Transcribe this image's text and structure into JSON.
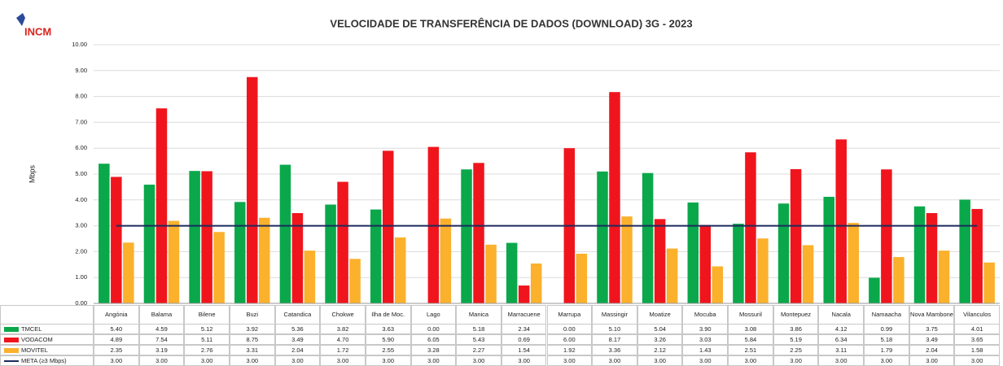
{
  "logo": "INCM",
  "chart_data": {
    "type": "bar",
    "title": "VELOCIDADE DE TRANSFERÊNCIA DE DADOS (DOWNLOAD) 3G - 2023",
    "y_label": "Mbps",
    "categories": [
      "Angónia",
      "Balama",
      "Bilene",
      "Buzi",
      "Catandica",
      "Chokwe",
      "Ilha de Moc.",
      "Lago",
      "Manica",
      "Marracuene",
      "Marrupa",
      "Massingir",
      "Moatize",
      "Mocuba",
      "Mossuril",
      "Montepuez",
      "Nacala",
      "Namaacha",
      "Nova Mambone",
      "Vilanculos"
    ],
    "series": [
      {
        "name": "TMCEL",
        "color": "#0aa84a",
        "type": "bar",
        "values": [
          5.4,
          4.59,
          5.12,
          3.92,
          5.36,
          3.82,
          3.63,
          0,
          5.18,
          2.34,
          0,
          5.1,
          5.04,
          3.9,
          3.08,
          3.86,
          4.12,
          0.99,
          3.75,
          4.01
        ],
        "value_labels": [
          "5.40",
          "4.59",
          "5.12",
          "3.92",
          "5.36",
          "3.82",
          "3.63",
          "0.00",
          "5.18",
          "2.34",
          "0.00",
          "5.10",
          "5.04",
          "3.90",
          "3.08",
          "3.86",
          "4.12",
          "0.99",
          "3.75",
          "4.01"
        ]
      },
      {
        "name": "VODACOM",
        "color": "#f0151d",
        "type": "bar",
        "values": [
          4.89,
          7.54,
          5.11,
          8.75,
          3.49,
          4.7,
          5.9,
          6.05,
          5.43,
          0.69,
          6,
          8.17,
          3.26,
          3.03,
          5.84,
          5.19,
          6.34,
          5.18,
          3.49,
          3.65
        ],
        "value_labels": [
          "4.89",
          "7.54",
          "5.11",
          "8.75",
          "3.49",
          "4.70",
          "5.90",
          "6.05",
          "5.43",
          "0.69",
          "6.00",
          "8.17",
          "3.26",
          "3.03",
          "5.84",
          "5.19",
          "6.34",
          "5.18",
          "3.49",
          "3.65"
        ]
      },
      {
        "name": "MOVITEL",
        "color": "#fbb12c",
        "type": "bar",
        "values": [
          2.35,
          3.19,
          2.76,
          3.31,
          2.04,
          1.72,
          2.55,
          3.28,
          2.27,
          1.54,
          1.92,
          3.36,
          2.12,
          1.43,
          2.51,
          2.25,
          3.11,
          1.79,
          2.04,
          1.58
        ],
        "value_labels": [
          "2.35",
          "3.19",
          "2.76",
          "3.31",
          "2.04",
          "1.72",
          "2.55",
          "3.28",
          "2.27",
          "1.54",
          "1.92",
          "3.36",
          "2.12",
          "1.43",
          "2.51",
          "2.25",
          "3.11",
          "1.79",
          "2.04",
          "1.58"
        ]
      },
      {
        "name": "META (≥3 Mbps)",
        "color": "#1d2b5e",
        "type": "line",
        "values": [
          3,
          3,
          3,
          3,
          3,
          3,
          3,
          3,
          3,
          3,
          3,
          3,
          3,
          3,
          3,
          3,
          3,
          3,
          3,
          3
        ],
        "value_labels": [
          "3.00",
          "3.00",
          "3.00",
          "3.00",
          "3.00",
          "3.00",
          "3.00",
          "3.00",
          "3.00",
          "3.00",
          "3.00",
          "3.00",
          "3.00",
          "3.00",
          "3.00",
          "3.00",
          "3.00",
          "3.00",
          "3.00",
          "3.00"
        ]
      }
    ],
    "ylim": [
      0,
      10
    ],
    "yticks": [
      {
        "value": 0,
        "label": "0.00"
      },
      {
        "value": 1,
        "label": "1.00"
      },
      {
        "value": 2,
        "label": "2.00"
      },
      {
        "value": 3,
        "label": "3.00"
      },
      {
        "value": 4,
        "label": "4.00"
      },
      {
        "value": 5,
        "label": "5.00"
      },
      {
        "value": 6,
        "label": "6.00"
      },
      {
        "value": 7,
        "label": "7.00"
      },
      {
        "value": 8,
        "label": "8.00"
      },
      {
        "value": 9,
        "label": "9.00"
      },
      {
        "value": 10,
        "label": "10.00"
      }
    ],
    "grid": true
  }
}
